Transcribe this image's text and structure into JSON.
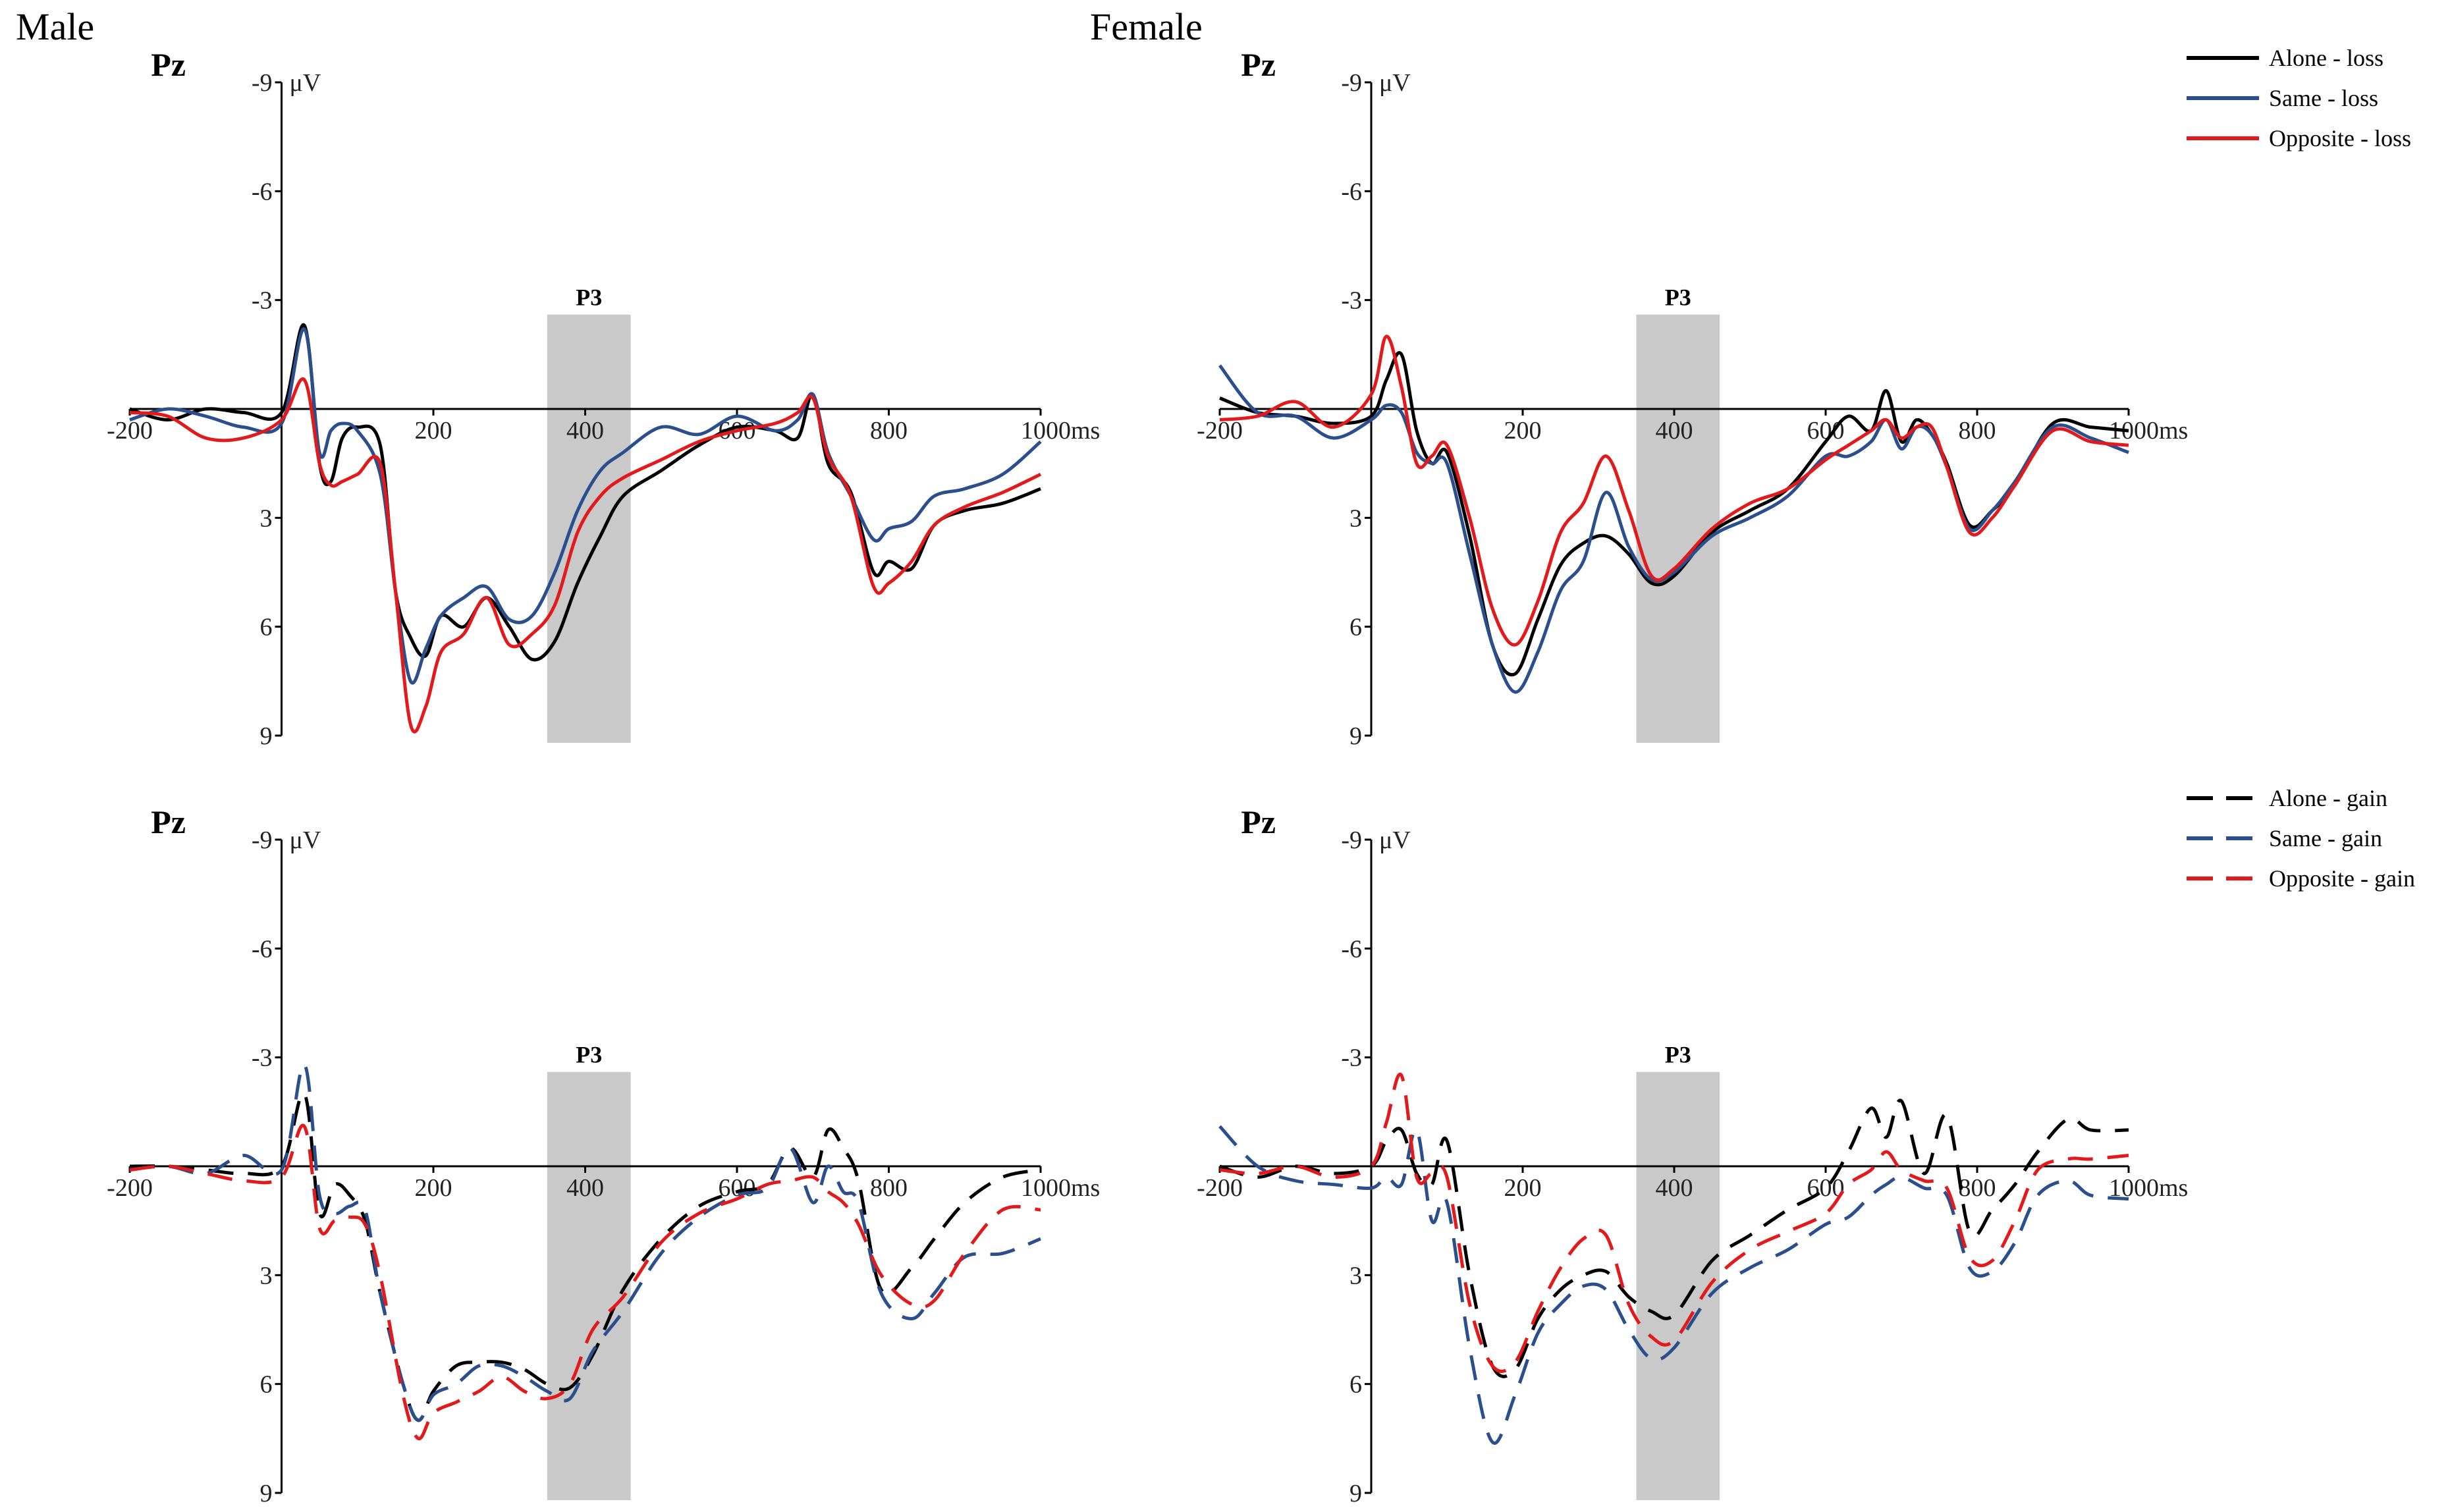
{
  "groups": [
    "Male",
    "Female"
  ],
  "channel": "Pz",
  "y_unit": "μV",
  "x_unit": "ms",
  "window_label": "P3",
  "legends": {
    "loss": [
      {
        "label": "Alone - loss",
        "color": "#000000",
        "dash": "solid"
      },
      {
        "label": "Same - loss",
        "color": "#2b4f8c",
        "dash": "solid"
      },
      {
        "label": "Opposite - loss",
        "color": "#e31a1c",
        "dash": "solid"
      }
    ],
    "gain": [
      {
        "label": "Alone - gain",
        "color": "#000000",
        "dash": "dashed"
      },
      {
        "label": "Same - gain",
        "color": "#2b4f8c",
        "dash": "dashed"
      },
      {
        "label": "Opposite - gain",
        "color": "#e31a1c",
        "dash": "dashed"
      }
    ]
  },
  "chart_data": [
    {
      "type": "line",
      "group": "Male",
      "channel": "Pz",
      "condition": "loss",
      "xlim": [
        -200,
        1000
      ],
      "ylim": [
        -9,
        9
      ],
      "y_inverted": true,
      "x_ticks": [
        -200,
        200,
        400,
        600,
        800,
        1000
      ],
      "y_ticks": [
        -9,
        -6,
        -3,
        3,
        6,
        9
      ],
      "window": {
        "label": "P3",
        "x": [
          350,
          460
        ]
      },
      "x": [
        -200,
        -150,
        -100,
        -50,
        0,
        30,
        50,
        65,
        80,
        100,
        130,
        150,
        170,
        190,
        210,
        240,
        270,
        300,
        330,
        360,
        390,
        420,
        450,
        500,
        550,
        600,
        650,
        680,
        700,
        720,
        750,
        780,
        800,
        830,
        860,
        900,
        950,
        1000
      ],
      "series": [
        {
          "name": "Alone - loss",
          "color": "#000000",
          "dash": "solid",
          "values": [
            0,
            0.3,
            0,
            0.1,
            0.1,
            -2.3,
            1.5,
            2,
            0.8,
            0.5,
            1,
            5,
            6.3,
            6.8,
            5.7,
            6,
            5.2,
            6,
            6.9,
            6.4,
            4.8,
            3.5,
            2.4,
            1.7,
            1,
            0.5,
            0.6,
            0.8,
            -0.4,
            1.5,
            2.3,
            4.5,
            4.2,
            4.4,
            3.2,
            2.8,
            2.6,
            2.2
          ]
        },
        {
          "name": "Same - loss",
          "color": "#2b4f8c",
          "dash": "solid",
          "values": [
            0.3,
            0,
            0.2,
            0.5,
            0.4,
            -2.2,
            1.2,
            0.6,
            0.4,
            0.6,
            1.8,
            5,
            7.5,
            6.6,
            5.7,
            5.2,
            4.9,
            5.8,
            5.7,
            4.5,
            2.8,
            1.7,
            1.2,
            0.5,
            0.7,
            0.2,
            0.6,
            0.3,
            -0.4,
            1.2,
            2.4,
            3.6,
            3.3,
            3.1,
            2.4,
            2.2,
            1.8,
            0.9
          ]
        },
        {
          "name": "Opposite - loss",
          "color": "#e31a1c",
          "dash": "solid",
          "values": [
            0.1,
            0.2,
            0.8,
            0.8,
            0.3,
            -0.8,
            1.5,
            2.1,
            2,
            1.8,
            1.5,
            5,
            8.7,
            8.2,
            6.7,
            6.2,
            5.2,
            6.5,
            6.2,
            5.4,
            3.4,
            2.4,
            1.9,
            1.4,
            0.9,
            0.6,
            0.4,
            0.1,
            -0.3,
            1.3,
            2.4,
            4.9,
            4.8,
            4.2,
            3.2,
            2.7,
            2.3,
            1.8
          ]
        }
      ]
    },
    {
      "type": "line",
      "group": "Female",
      "channel": "Pz",
      "condition": "loss",
      "xlim": [
        -200,
        1000
      ],
      "ylim": [
        -9,
        9
      ],
      "y_inverted": true,
      "x_ticks": [
        -200,
        200,
        400,
        600,
        800,
        1000
      ],
      "y_ticks": [
        -9,
        -6,
        -3,
        3,
        6,
        9
      ],
      "window": {
        "label": "P3",
        "x": [
          350,
          460
        ]
      },
      "x": [
        -200,
        -150,
        -100,
        -50,
        0,
        20,
        40,
        60,
        80,
        100,
        130,
        160,
        190,
        220,
        250,
        280,
        310,
        340,
        370,
        400,
        450,
        500,
        550,
        600,
        630,
        660,
        680,
        700,
        720,
        740,
        760,
        790,
        820,
        850,
        900,
        950,
        1000
      ],
      "series": [
        {
          "name": "Alone - loss",
          "color": "#000000",
          "dash": "solid",
          "values": [
            -0.3,
            0.1,
            0.2,
            0.4,
            0.2,
            -0.8,
            -1.5,
            0.6,
            1.5,
            1.2,
            3.5,
            6.5,
            7.3,
            5.8,
            4.3,
            3.7,
            3.5,
            4,
            4.8,
            4.6,
            3.4,
            2.8,
            2.2,
            0.9,
            0.2,
            0.6,
            -0.5,
            0.9,
            0.3,
            0.7,
            1.5,
            3.2,
            2.8,
            2.1,
            0.4,
            0.5,
            0.6
          ]
        },
        {
          "name": "Same - loss",
          "color": "#2b4f8c",
          "dash": "solid",
          "values": [
            -1.2,
            0.1,
            0.2,
            0.8,
            0.3,
            -0.1,
            0.1,
            1.2,
            1.5,
            1.5,
            4,
            6.5,
            7.8,
            6.7,
            5,
            4.2,
            2.3,
            3.8,
            4.7,
            4.5,
            3.5,
            3,
            2.4,
            1.3,
            1.3,
            0.9,
            0.3,
            1.1,
            0.5,
            0.7,
            1.6,
            3.3,
            2.8,
            2,
            0.5,
            0.8,
            1.2
          ]
        },
        {
          "name": "Opposite - loss",
          "color": "#e31a1c",
          "dash": "solid",
          "values": [
            0.3,
            0.2,
            -0.2,
            0.5,
            -0.4,
            -2,
            -0.6,
            1.5,
            1.3,
            1,
            3,
            5.5,
            6.5,
            5.3,
            3.4,
            2.6,
            1.3,
            2.8,
            4.6,
            4.4,
            3.3,
            2.6,
            2.2,
            1.4,
            1,
            0.6,
            0.3,
            0.8,
            0.5,
            0.5,
            1.6,
            3.4,
            3,
            2.1,
            0.6,
            0.9,
            1
          ]
        }
      ]
    },
    {
      "type": "line",
      "group": "Male",
      "channel": "Pz",
      "condition": "gain",
      "xlim": [
        -200,
        1000
      ],
      "ylim": [
        -9,
        9
      ],
      "y_inverted": true,
      "x_ticks": [
        -200,
        200,
        400,
        600,
        800,
        1000
      ],
      "y_ticks": [
        -9,
        -6,
        -3,
        3,
        6,
        9
      ],
      "window": {
        "label": "P3",
        "x": [
          350,
          460
        ]
      },
      "x": [
        -200,
        -150,
        -100,
        -50,
        0,
        30,
        50,
        70,
        90,
        110,
        130,
        160,
        180,
        200,
        230,
        260,
        290,
        320,
        350,
        380,
        410,
        450,
        500,
        550,
        600,
        640,
        670,
        700,
        720,
        740,
        760,
        790,
        830,
        860,
        900,
        950,
        1000
      ],
      "series": [
        {
          "name": "Alone - gain",
          "color": "#000000",
          "dash": "dashed",
          "values": [
            0,
            0,
            0.1,
            0.2,
            0,
            -2,
            1.3,
            0.5,
            0.8,
            1.5,
            3.5,
            6,
            7,
            6.2,
            5.5,
            5.4,
            5.4,
            5.6,
            6,
            6.1,
            5.2,
            3.4,
            2,
            1.1,
            0.7,
            0.5,
            -0.5,
            0.3,
            -1,
            -0.5,
            0.4,
            3.4,
            2.8,
            2,
            1,
            0.3,
            0.1
          ]
        },
        {
          "name": "Same - gain",
          "color": "#2b4f8c",
          "dash": "dashed",
          "values": [
            0.1,
            0,
            0.2,
            -0.3,
            0.1,
            -2.8,
            0.8,
            1.3,
            1.1,
            1.2,
            3.5,
            6,
            7,
            6.3,
            6,
            5.5,
            5.5,
            5.8,
            6.2,
            6.4,
            5.1,
            4,
            2.4,
            1.4,
            0.8,
            0.6,
            -0.5,
            1,
            0,
            0.7,
            1,
            3.5,
            4.2,
            3.5,
            2.5,
            2.4,
            2
          ]
        },
        {
          "name": "Opposite - gain",
          "color": "#e31a1c",
          "dash": "dashed",
          "values": [
            0.1,
            0,
            0.2,
            0.4,
            0.3,
            -1.1,
            1.7,
            1.5,
            1.4,
            1.6,
            3,
            6.3,
            7.5,
            6.8,
            6.5,
            6.2,
            5.8,
            6.2,
            6.4,
            6,
            4.5,
            3.6,
            2.1,
            1.3,
            0.9,
            0.5,
            0.4,
            0.3,
            0.7,
            1,
            1.6,
            3,
            3.8,
            3.7,
            2.4,
            1.2,
            1.2
          ]
        }
      ]
    },
    {
      "type": "line",
      "group": "Female",
      "channel": "Pz",
      "condition": "gain",
      "xlim": [
        -200,
        1000
      ],
      "ylim": [
        -9,
        9
      ],
      "y_inverted": true,
      "x_ticks": [
        -200,
        200,
        400,
        600,
        800,
        1000
      ],
      "y_ticks": [
        -9,
        -6,
        -3,
        3,
        6,
        9
      ],
      "window": {
        "label": "P3",
        "x": [
          350,
          460
        ]
      },
      "x": [
        -200,
        -150,
        -100,
        -50,
        0,
        20,
        40,
        60,
        80,
        100,
        130,
        160,
        190,
        220,
        250,
        280,
        310,
        340,
        370,
        400,
        450,
        500,
        550,
        600,
        630,
        660,
        680,
        700,
        730,
        760,
        790,
        820,
        850,
        880,
        920,
        950,
        1000
      ],
      "series": [
        {
          "name": "Alone - gain",
          "color": "#000000",
          "dash": "dashed",
          "values": [
            0,
            0.3,
            0,
            0.2,
            0,
            -0.7,
            -1,
            0.2,
            0.5,
            -0.7,
            3,
            5.5,
            5.6,
            4.2,
            3.4,
            3,
            2.9,
            3.6,
            4,
            4.1,
            2.6,
            1.9,
            1.2,
            0.6,
            -0.4,
            -1.6,
            -0.8,
            -1.8,
            0.2,
            -1.4,
            1.8,
            1.2,
            0.5,
            -0.4,
            -1.3,
            -1,
            -1
          ]
        },
        {
          "name": "Same - gain",
          "color": "#2b4f8c",
          "dash": "dashed",
          "values": [
            -1.1,
            0,
            0.4,
            0.5,
            0.6,
            0.3,
            0.5,
            -1,
            1.5,
            1,
            5,
            7.6,
            6.3,
            4.6,
            3.8,
            3.3,
            3.4,
            4.5,
            5.3,
            5,
            3.5,
            2.8,
            2.3,
            1.6,
            1.4,
            0.8,
            0.5,
            0.3,
            0.6,
            0.8,
            2.8,
            2.9,
            2.1,
            0.8,
            0.4,
            0.8,
            0.9
          ]
        },
        {
          "name": "Opposite - gain",
          "color": "#e31a1c",
          "dash": "dashed",
          "values": [
            0.1,
            0.2,
            0,
            0.3,
            0,
            -1.2,
            -2.5,
            0.3,
            0.2,
            0.3,
            3.8,
            5.5,
            5.4,
            4,
            2.8,
            2,
            1.9,
            3.8,
            4.7,
            4.8,
            3.2,
            2.3,
            1.8,
            1.3,
            0.5,
            0.1,
            -0.4,
            0.1,
            0.4,
            0.6,
            2.5,
            2.6,
            1.5,
            0.1,
            -0.2,
            -0.2,
            -0.3
          ]
        }
      ]
    }
  ]
}
